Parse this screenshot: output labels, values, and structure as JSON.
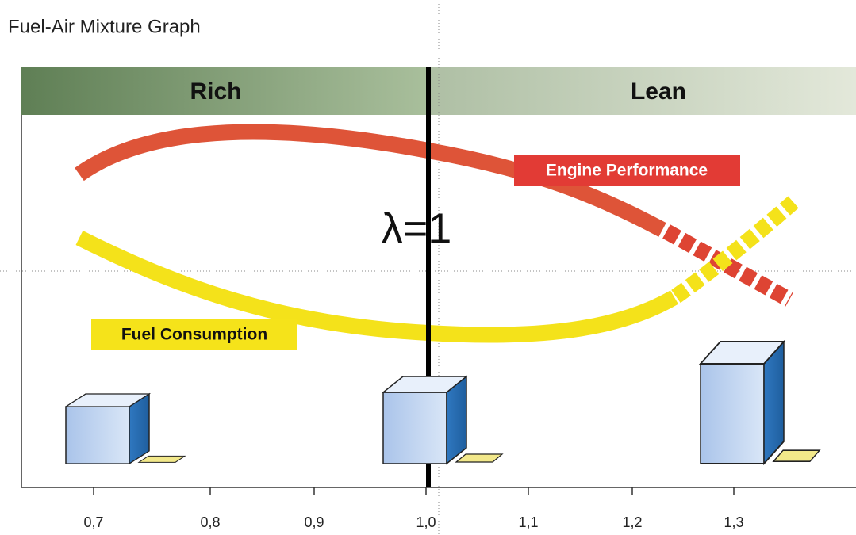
{
  "title": "Fuel-Air Mixture Graph",
  "bands": {
    "left": "Rich",
    "right": "Lean"
  },
  "center_label": "λ=1",
  "curves": {
    "performance": "Engine Performance",
    "consumption": "Fuel Consumption"
  },
  "axis": {
    "ticks": [
      "0,7",
      "0,8",
      "0,9",
      "1,0",
      "1,1",
      "1,2",
      "1,3"
    ]
  }
}
